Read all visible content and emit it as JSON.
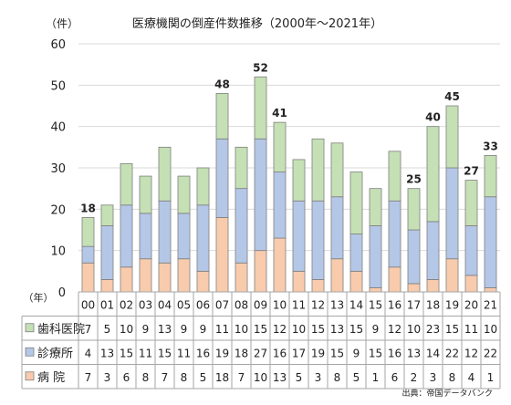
{
  "chart_data": {
    "type": "bar",
    "stacked": true,
    "title": "医療機関の倒産件数推移（2000年～2021年）",
    "ylabel": "（件）",
    "xlabel": "（年）",
    "ylim": [
      0,
      60
    ],
    "yticks": [
      "0",
      "10",
      "20",
      "30",
      "40",
      "50",
      "60"
    ],
    "categories": [
      "00",
      "01",
      "02",
      "03",
      "04",
      "05",
      "06",
      "07",
      "08",
      "09",
      "10",
      "11",
      "12",
      "13",
      "14",
      "15",
      "16",
      "17",
      "18",
      "19",
      "20",
      "21"
    ],
    "series": [
      {
        "name": "病 院",
        "color": "#f8cbad",
        "values": [
          7,
          3,
          6,
          8,
          7,
          8,
          5,
          18,
          7,
          10,
          13,
          5,
          3,
          8,
          5,
          1,
          6,
          2,
          3,
          8,
          4,
          1
        ]
      },
      {
        "name": "診療所",
        "color": "#b4c7e7",
        "values": [
          4,
          13,
          15,
          11,
          15,
          11,
          16,
          19,
          18,
          27,
          16,
          17,
          19,
          15,
          9,
          15,
          16,
          13,
          14,
          22,
          12,
          22
        ]
      },
      {
        "name": "歯科医院",
        "color": "#c5e0b4",
        "values": [
          7,
          5,
          10,
          9,
          13,
          9,
          9,
          11,
          10,
          15,
          12,
          10,
          15,
          13,
          15,
          9,
          12,
          10,
          23,
          15,
          11,
          10
        ]
      }
    ],
    "totals_labels": [
      {
        "category": "00",
        "text": "18"
      },
      {
        "category": "07",
        "text": "48"
      },
      {
        "category": "09",
        "text": "52"
      },
      {
        "category": "10",
        "text": "41"
      },
      {
        "category": "17",
        "text": "25"
      },
      {
        "category": "18",
        "text": "40"
      },
      {
        "category": "19",
        "text": "45"
      },
      {
        "category": "20",
        "text": "27"
      },
      {
        "category": "21",
        "text": "33"
      }
    ],
    "table_rows": [
      {
        "label": "歯科医院",
        "color": "#c5e0b4",
        "values": [
          "7",
          "5",
          "10",
          "9",
          "13",
          "9",
          "9",
          "11",
          "10",
          "15",
          "12",
          "10",
          "15",
          "13",
          "15",
          "9",
          "12",
          "10",
          "23",
          "15",
          "11",
          "10"
        ]
      },
      {
        "label": "診療所",
        "color": "#b4c7e7",
        "values": [
          "4",
          "13",
          "15",
          "11",
          "15",
          "11",
          "16",
          "19",
          "18",
          "27",
          "16",
          "17",
          "19",
          "15",
          "9",
          "15",
          "16",
          "13",
          "14",
          "22",
          "12",
          "22"
        ]
      },
      {
        "label": "病 院",
        "color": "#f8cbad",
        "values": [
          "7",
          "3",
          "6",
          "8",
          "7",
          "8",
          "5",
          "18",
          "7",
          "10",
          "13",
          "5",
          "3",
          "8",
          "5",
          "1",
          "6",
          "2",
          "3",
          "8",
          "4",
          "1"
        ]
      }
    ],
    "grid": true,
    "source": "出典：帝国データバンク"
  }
}
